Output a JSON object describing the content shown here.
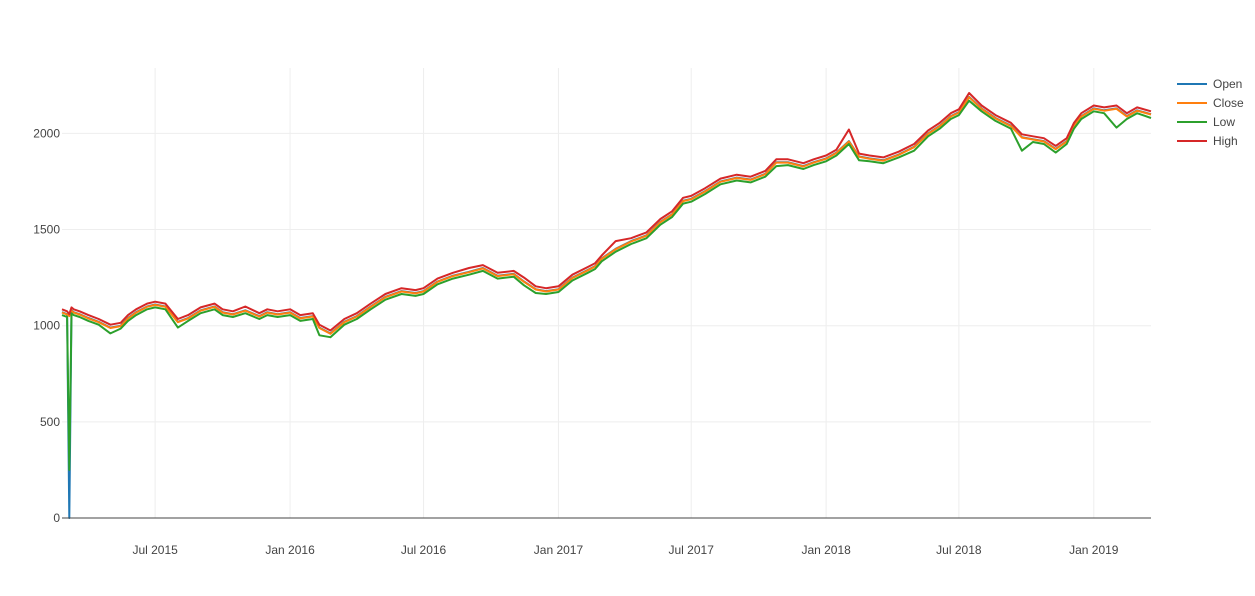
{
  "chart_data": {
    "type": "line",
    "title": "",
    "xlabel": "",
    "ylabel": "",
    "xlim": [
      "2015-02-24",
      "2019-03-20"
    ],
    "ylim": [
      0,
      2340
    ],
    "grid": true,
    "legend_position": "top-right",
    "x_ticks": [
      {
        "label": "Jul 2015",
        "date": "2015-07-01"
      },
      {
        "label": "Jan 2016",
        "date": "2016-01-01"
      },
      {
        "label": "Jul 2016",
        "date": "2016-07-01"
      },
      {
        "label": "Jan 2017",
        "date": "2017-01-01"
      },
      {
        "label": "Jul 2017",
        "date": "2017-07-01"
      },
      {
        "label": "Jan 2018",
        "date": "2018-01-01"
      },
      {
        "label": "Jul 2018",
        "date": "2018-07-01"
      },
      {
        "label": "Jan 2019",
        "date": "2019-01-01"
      }
    ],
    "y_ticks": [
      {
        "label": "0",
        "value": 0
      },
      {
        "label": "500",
        "value": 500
      },
      {
        "label": "1000",
        "value": 1000
      },
      {
        "label": "1500",
        "value": 1500
      },
      {
        "label": "2000",
        "value": 2000
      }
    ],
    "x": [
      "2015-02-24",
      "2015-03-03",
      "2015-03-06",
      "2015-03-09",
      "2015-03-12",
      "2015-03-20",
      "2015-04-01",
      "2015-04-15",
      "2015-05-01",
      "2015-05-15",
      "2015-05-25",
      "2015-06-05",
      "2015-06-20",
      "2015-07-01",
      "2015-07-15",
      "2015-08-01",
      "2015-08-15",
      "2015-09-01",
      "2015-09-20",
      "2015-10-01",
      "2015-10-15",
      "2015-11-01",
      "2015-11-20",
      "2015-12-01",
      "2015-12-15",
      "2016-01-01",
      "2016-01-15",
      "2016-02-01",
      "2016-02-10",
      "2016-02-25",
      "2016-03-15",
      "2016-04-01",
      "2016-04-20",
      "2016-05-10",
      "2016-06-01",
      "2016-06-20",
      "2016-07-01",
      "2016-07-20",
      "2016-08-10",
      "2016-09-01",
      "2016-09-20",
      "2016-10-10",
      "2016-11-01",
      "2016-11-15",
      "2016-12-01",
      "2016-12-15",
      "2017-01-01",
      "2017-01-20",
      "2017-02-10",
      "2017-02-20",
      "2017-03-01",
      "2017-03-20",
      "2017-04-10",
      "2017-05-01",
      "2017-05-20",
      "2017-06-05",
      "2017-06-20",
      "2017-07-01",
      "2017-07-20",
      "2017-08-10",
      "2017-09-01",
      "2017-09-20",
      "2017-10-10",
      "2017-10-25",
      "2017-11-10",
      "2017-12-01",
      "2017-12-15",
      "2018-01-01",
      "2018-01-15",
      "2018-02-01",
      "2018-02-15",
      "2018-03-01",
      "2018-03-20",
      "2018-04-10",
      "2018-05-01",
      "2018-05-20",
      "2018-06-05",
      "2018-06-20",
      "2018-07-01",
      "2018-07-15",
      "2018-08-01",
      "2018-08-20",
      "2018-09-10",
      "2018-09-25",
      "2018-10-10",
      "2018-10-25",
      "2018-11-10",
      "2018-11-25",
      "2018-12-05",
      "2018-12-15",
      "2019-01-01",
      "2019-01-15",
      "2019-02-01",
      "2019-02-15",
      "2019-03-01",
      "2019-03-20"
    ],
    "series": [
      {
        "name": "Open",
        "color": "#1f77b4",
        "values": [
          1070,
          1060,
          0,
          1080,
          1070,
          1060,
          1040,
          1020,
          990,
          1000,
          1040,
          1070,
          1100,
          1110,
          1100,
          1020,
          1040,
          1080,
          1100,
          1070,
          1060,
          1080,
          1050,
          1070,
          1060,
          1070,
          1040,
          1050,
          990,
          960,
          1020,
          1050,
          1100,
          1150,
          1180,
          1170,
          1180,
          1230,
          1260,
          1280,
          1300,
          1260,
          1270,
          1230,
          1190,
          1180,
          1190,
          1250,
          1290,
          1310,
          1350,
          1400,
          1440,
          1470,
          1540,
          1580,
          1650,
          1660,
          1700,
          1750,
          1770,
          1760,
          1790,
          1850,
          1850,
          1830,
          1850,
          1870,
          1900,
          1960,
          1880,
          1870,
          1860,
          1890,
          1930,
          2000,
          2040,
          2090,
          2110,
          2190,
          2130,
          2080,
          2040,
          1980,
          1970,
          1960,
          1920,
          1960,
          2040,
          2090,
          2130,
          2120,
          2130,
          2090,
          2120,
          2100
        ]
      },
      {
        "name": "Close",
        "color": "#ff7f0e",
        "values": [
          1068,
          1058,
          1050,
          1078,
          1068,
          1058,
          1038,
          1018,
          988,
          998,
          1038,
          1068,
          1098,
          1108,
          1098,
          1018,
          1038,
          1078,
          1098,
          1068,
          1058,
          1078,
          1048,
          1068,
          1058,
          1068,
          1038,
          1048,
          988,
          958,
          1018,
          1048,
          1098,
          1148,
          1178,
          1168,
          1178,
          1228,
          1258,
          1278,
          1298,
          1258,
          1268,
          1228,
          1188,
          1178,
          1188,
          1248,
          1288,
          1308,
          1348,
          1398,
          1438,
          1468,
          1538,
          1578,
          1648,
          1658,
          1698,
          1748,
          1768,
          1758,
          1788,
          1848,
          1848,
          1828,
          1848,
          1868,
          1898,
          1958,
          1878,
          1868,
          1858,
          1888,
          1928,
          1998,
          2038,
          2088,
          2108,
          2188,
          2128,
          2078,
          2038,
          1978,
          1968,
          1958,
          1918,
          1958,
          2038,
          2088,
          2128,
          2118,
          2128,
          2088,
          2118,
          2098
        ]
      },
      {
        "name": "Low",
        "color": "#2ca02c",
        "values": [
          1055,
          1045,
          250,
          1065,
          1055,
          1045,
          1025,
          1005,
          960,
          985,
          1025,
          1055,
          1085,
          1095,
          1085,
          990,
          1025,
          1065,
          1085,
          1055,
          1045,
          1065,
          1035,
          1055,
          1045,
          1055,
          1025,
          1035,
          950,
          940,
          1005,
          1035,
          1085,
          1135,
          1165,
          1155,
          1165,
          1215,
          1245,
          1265,
          1285,
          1245,
          1255,
          1210,
          1170,
          1165,
          1175,
          1235,
          1275,
          1295,
          1335,
          1385,
          1425,
          1455,
          1525,
          1565,
          1635,
          1645,
          1685,
          1735,
          1755,
          1745,
          1775,
          1830,
          1835,
          1815,
          1835,
          1855,
          1885,
          1945,
          1860,
          1855,
          1845,
          1875,
          1910,
          1985,
          2025,
          2075,
          2095,
          2170,
          2115,
          2065,
          2025,
          1910,
          1955,
          1945,
          1900,
          1945,
          2025,
          2075,
          2115,
          2105,
          2030,
          2075,
          2105,
          2080
        ]
      },
      {
        "name": "High",
        "color": "#d62728",
        "values": [
          1085,
          1075,
          1060,
          1095,
          1085,
          1075,
          1055,
          1035,
          1005,
          1015,
          1055,
          1085,
          1115,
          1125,
          1115,
          1035,
          1055,
          1095,
          1115,
          1085,
          1075,
          1100,
          1065,
          1085,
          1075,
          1085,
          1055,
          1065,
          1005,
          975,
          1035,
          1065,
          1115,
          1165,
          1195,
          1185,
          1195,
          1245,
          1275,
          1300,
          1315,
          1275,
          1285,
          1250,
          1205,
          1195,
          1205,
          1265,
          1305,
          1325,
          1365,
          1440,
          1455,
          1485,
          1555,
          1595,
          1665,
          1675,
          1715,
          1765,
          1785,
          1775,
          1805,
          1865,
          1865,
          1845,
          1865,
          1885,
          1915,
          2020,
          1895,
          1885,
          1875,
          1905,
          1945,
          2015,
          2055,
          2105,
          2125,
          2210,
          2145,
          2095,
          2055,
          1995,
          1985,
          1975,
          1935,
          1975,
          2055,
          2105,
          2145,
          2135,
          2145,
          2105,
          2135,
          2115
        ]
      }
    ]
  }
}
